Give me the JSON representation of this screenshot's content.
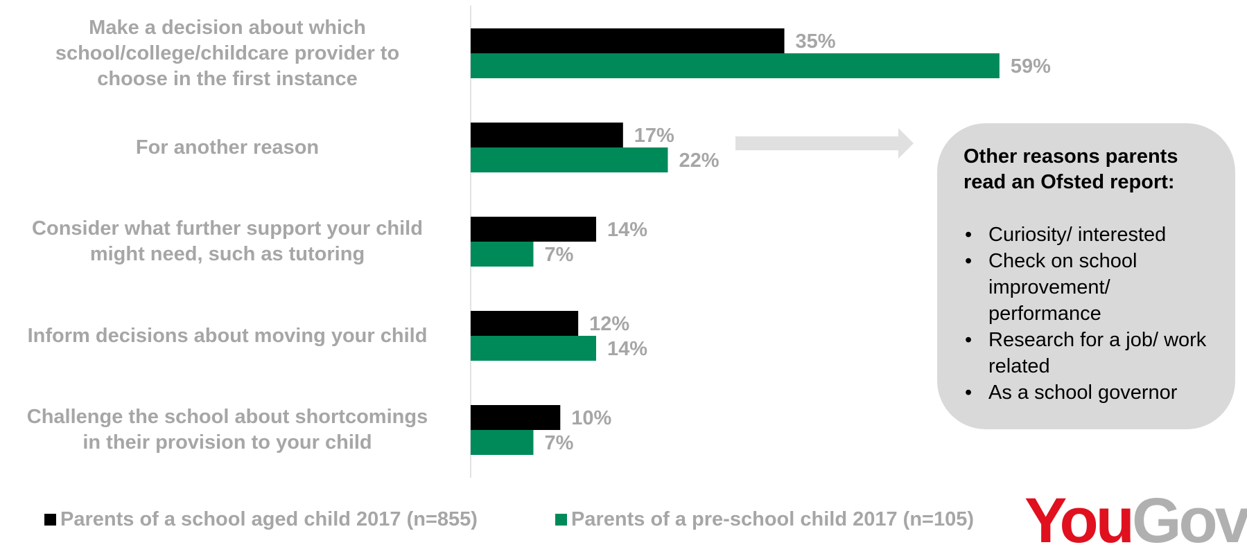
{
  "chart_data": {
    "type": "bar",
    "orientation": "horizontal",
    "categories": [
      "Make a decision about which school/college/childcare provider to choose in the first instance",
      "For another reason",
      "Consider what further support your child might need, such as tutoring",
      "Inform decisions about moving your child",
      "Challenge the school about shortcomings in their provision to your child"
    ],
    "category_lines": [
      [
        "Make a decision about which",
        "school/college/childcare provider to",
        "choose in the first instance"
      ],
      [
        "For another reason"
      ],
      [
        "Consider what further support your child",
        "might need, such as tutoring"
      ],
      [
        "Inform decisions about moving your child"
      ],
      [
        "Challenge the school about shortcomings",
        "in their provision to your child"
      ]
    ],
    "series": [
      {
        "name": "Parents of a school aged child 2017 (n=855)",
        "color": "#000000",
        "values": [
          35,
          17,
          14,
          12,
          10
        ]
      },
      {
        "name": "Parents of a pre-school child 2017 (n=105)",
        "color": "#008a5a",
        "values": [
          59,
          22,
          7,
          14,
          7
        ]
      }
    ],
    "value_suffix": "%",
    "xlim": [
      0,
      90
    ],
    "grid": false,
    "legend_position": "bottom",
    "label_color": "#a6a6a6"
  },
  "callout": {
    "title": "Other reasons parents read an Ofsted report:",
    "items": [
      "Curiosity/ interested",
      "Check on school improvement/ performance",
      "Research for a job/ work related",
      "As a school governor"
    ],
    "background": "#d9d9d9"
  },
  "legend": {
    "items": [
      {
        "label": "Parents of a school aged child 2017 (n=855)",
        "color": "#000000"
      },
      {
        "label": "Parents of a pre-school child 2017 (n=105)",
        "color": "#008a5a"
      }
    ]
  },
  "logo": {
    "part1": "You",
    "part2": "Gov",
    "color1": "#e0101e",
    "color2": "#b0b0b0"
  }
}
